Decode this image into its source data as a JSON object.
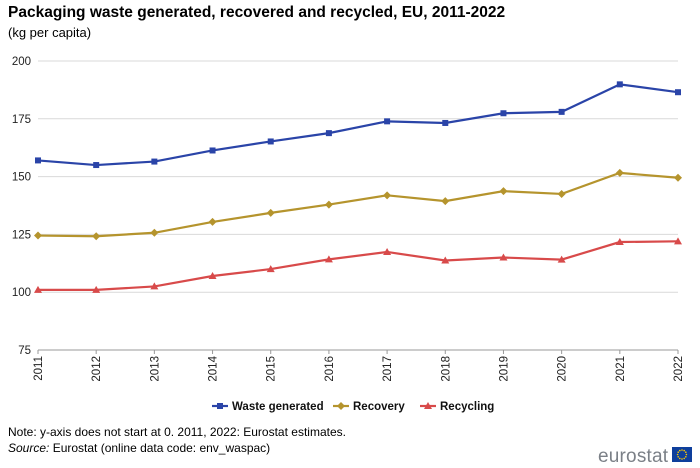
{
  "chart_data": {
    "type": "line",
    "title": "Packaging waste generated, recovered and recycled, EU, 2011-2022",
    "subtitle": "(kg per capita)",
    "categories": [
      "2011",
      "2012",
      "2013",
      "2014",
      "2015",
      "2016",
      "2017",
      "2018",
      "2019",
      "2020",
      "2021",
      "2022"
    ],
    "ylim": [
      75,
      200
    ],
    "yticks": [
      75,
      100,
      125,
      150,
      175,
      200
    ],
    "grid": true,
    "legend_position": "bottom-center",
    "series": [
      {
        "name": "Waste generated",
        "color": "#2a44a8",
        "marker": "square",
        "values": [
          157.0,
          155.0,
          156.5,
          161.3,
          165.2,
          168.8,
          173.9,
          173.2,
          177.4,
          178.0,
          189.9,
          186.5
        ]
      },
      {
        "name": "Recovery",
        "color": "#b5942d",
        "marker": "diamond",
        "values": [
          124.5,
          124.2,
          125.7,
          130.4,
          134.3,
          137.9,
          141.9,
          139.4,
          143.7,
          142.5,
          151.6,
          149.5
        ]
      },
      {
        "name": "Recycling",
        "color": "#d84a4a",
        "marker": "triangle",
        "values": [
          101.0,
          101.0,
          102.5,
          107.0,
          110.0,
          114.2,
          117.4,
          113.7,
          115.0,
          114.1,
          121.7,
          122.0
        ]
      }
    ]
  },
  "footer": {
    "note": "Note: y-axis does not start at 0. 2011, 2022: Eurostat estimates.",
    "source_label": "Source:",
    "source_text": " Eurostat (online data code: env_waspac)",
    "logo_text": "eurostat"
  }
}
